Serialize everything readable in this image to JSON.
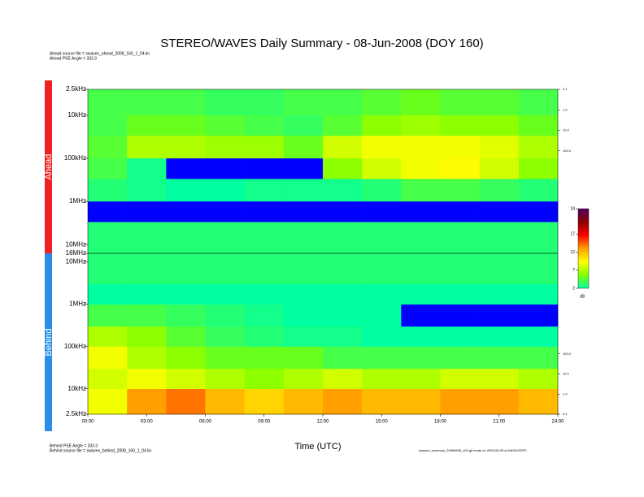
{
  "chart_data": [
    {
      "type": "heatmap",
      "name": "Ahead",
      "title": "STEREO/WAVES Daily Summary - 08-Jun-2008 (DOY 160)",
      "notes": [
        "Ahead source file = swaves_ahead_2008_160_1_04.lin",
        "Ahead PSE Angle = 333.3"
      ],
      "log_y": true,
      "log_y2": true,
      "xlim": [
        0,
        24
      ],
      "ylim": [
        2500,
        16000000
      ],
      "y2lim": [
        0.1,
        10000000
      ],
      "yticks": [
        {
          "value": 2500,
          "label": "2.5kHz"
        },
        {
          "value": 10000,
          "label": "10kHz"
        },
        {
          "value": 100000,
          "label": "100kHz"
        },
        {
          "value": 1000000,
          "label": "1MHz"
        },
        {
          "value": 10000000,
          "label": "10MHz"
        },
        {
          "value": 16000000,
          "label": "16MHz"
        }
      ],
      "y2ticks": [
        0.1,
        {
          "value": 1,
          "label": "1.0"
        },
        {
          "value": 10,
          "label": "10.0"
        },
        {
          "value": 100,
          "label": "100.0"
        }
      ],
      "x_edges": [
        0,
        2,
        4,
        6,
        8,
        10,
        12,
        14,
        16,
        18,
        20,
        22,
        24
      ],
      "y_edges": [
        2500,
        10000,
        30000,
        100000,
        300000,
        1000000,
        3000000,
        16000000
      ],
      "z": [
        [
          4,
          4,
          4,
          3.5,
          3.5,
          4,
          4,
          4.5,
          5,
          4.5,
          4.5,
          4
        ],
        [
          4,
          5,
          5,
          4.5,
          4,
          3.5,
          4.5,
          6,
          6.5,
          6,
          6,
          5
        ],
        [
          4.5,
          7,
          7,
          6.5,
          6.5,
          5,
          8,
          9,
          9,
          9,
          8.5,
          7
        ],
        [
          4,
          2.5,
          1.5,
          1.5,
          1.5,
          1.5,
          6,
          8,
          9,
          9.5,
          8,
          6
        ],
        [
          3,
          2.5,
          2,
          2,
          2.5,
          2.5,
          2.5,
          3,
          4,
          4,
          3.5,
          3
        ],
        [
          1.5,
          1.5,
          1.5,
          1.5,
          1.5,
          1.5,
          1.5,
          1.5,
          1.5,
          1.5,
          1.5,
          1.5
        ],
        [
          3,
          3,
          3,
          3,
          3,
          3,
          3,
          3,
          3,
          3,
          3,
          3
        ]
      ],
      "band_color": "#ee2222"
    },
    {
      "type": "heatmap",
      "name": "Behind",
      "xlabel": "Time (UTC)",
      "notes": [
        "Behind PSE Angle = 333.3",
        "Behind source file = swaves_behind_2008_160_1_04.lin"
      ],
      "log_y": true,
      "log_y2": true,
      "xlim": [
        0,
        24
      ],
      "ylim": [
        16000000,
        2500
      ],
      "y2lim": [
        10000000,
        0.1
      ],
      "xticks": [
        {
          "value": 0,
          "label": "00:00"
        },
        {
          "value": 3,
          "label": "03:00"
        },
        {
          "value": 6,
          "label": "06:00"
        },
        {
          "value": 9,
          "label": "09:00"
        },
        {
          "value": 12,
          "label": "12:00"
        },
        {
          "value": 15,
          "label": "15:00"
        },
        {
          "value": 18,
          "label": "18:00"
        },
        {
          "value": 21,
          "label": "21:00"
        },
        {
          "value": 24,
          "label": "24:00"
        }
      ],
      "yticks": [
        {
          "value": 10000000,
          "label": "10MHz"
        },
        {
          "value": 1000000,
          "label": "1MHz"
        },
        {
          "value": 100000,
          "label": "100kHz"
        },
        {
          "value": 10000,
          "label": "10kHz"
        },
        {
          "value": 2500,
          "label": "2.5kHz"
        }
      ],
      "y2ticks": [
        {
          "value": 100,
          "label": "100.0"
        },
        {
          "value": 10,
          "label": "10.0"
        },
        {
          "value": 1,
          "label": "1.0"
        },
        0.1
      ],
      "x_edges": [
        0,
        2,
        4,
        6,
        8,
        10,
        12,
        14,
        16,
        18,
        20,
        22,
        24
      ],
      "y_edges": [
        2500,
        10000,
        30000,
        100000,
        300000,
        1000000,
        3000000,
        16000000
      ],
      "z": [
        [
          9,
          13,
          14,
          12,
          11,
          12,
          13,
          12,
          12,
          13,
          13,
          12
        ],
        [
          8,
          9,
          8,
          7,
          6,
          7,
          8,
          7,
          7,
          8,
          8,
          7
        ],
        [
          9,
          7,
          6,
          5,
          5,
          5,
          4,
          4,
          4,
          4,
          4,
          4
        ],
        [
          7,
          6,
          4.5,
          3.5,
          3,
          2.5,
          2.5,
          2,
          2,
          2,
          2,
          2
        ],
        [
          4,
          4,
          3.5,
          3,
          2.5,
          2,
          2,
          2,
          1.5,
          1.5,
          1.5,
          1.5
        ],
        [
          2,
          2,
          2,
          2,
          2,
          2,
          2,
          2,
          2,
          2,
          2,
          2
        ],
        [
          3,
          3,
          3,
          3,
          3,
          3,
          3,
          3,
          3,
          3,
          3,
          3
        ]
      ],
      "band_color": "#2a8ee8"
    }
  ],
  "colorbar": {
    "lim": [
      2,
      24
    ],
    "ticks": [
      24,
      17,
      12,
      7,
      2
    ],
    "label": "dB",
    "colors": [
      "#00ffa0",
      "#80ff00",
      "#ffff00",
      "#ffa000",
      "#ff0000",
      "#8b0000",
      "#500060"
    ],
    "under_color": "#0000ff"
  },
  "footer": "swaves_summary_20080608_v04.gif made on 2008-06-09 at NASA/GSFC"
}
